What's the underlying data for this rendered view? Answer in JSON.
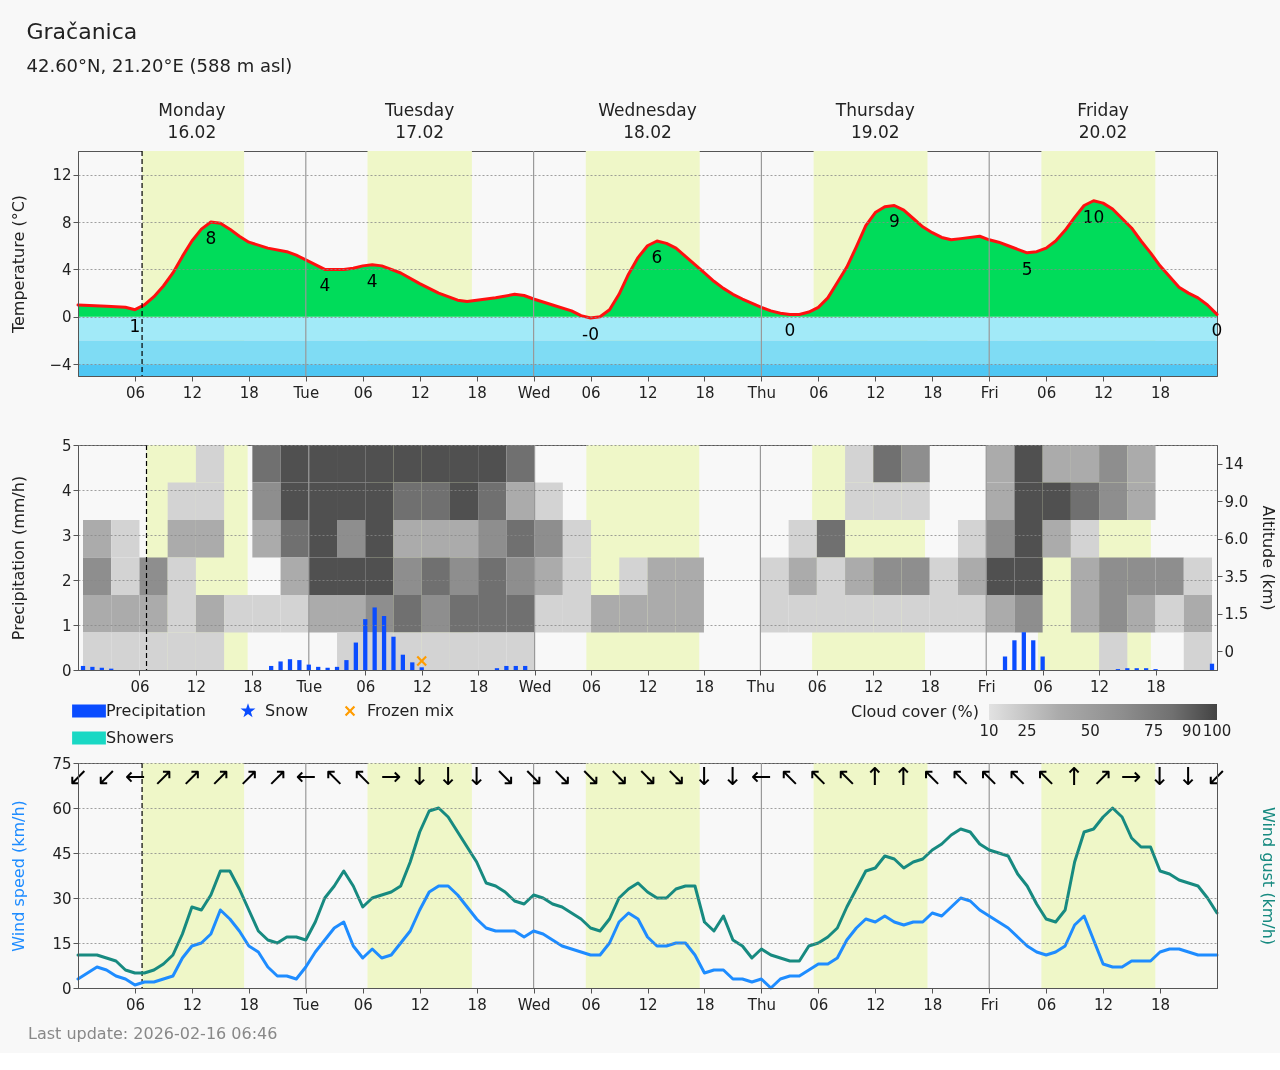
{
  "chart_data": [
    {
      "type": "area",
      "title": "Gračanica",
      "subtitle": "42.60°N, 21.20°E (588 m asl)",
      "ylabel": "Temperature (°C)",
      "x": [
        "2026-02-16T00:00",
        "2026-02-16T03:00",
        "2026-02-16T05:00",
        "2026-02-16T06:00",
        "2026-02-16T07:00",
        "2026-02-16T08:00",
        "2026-02-16T09:00",
        "2026-02-16T10:00",
        "2026-02-16T11:00",
        "2026-02-16T12:00",
        "2026-02-16T13:00",
        "2026-02-16T14:00",
        "2026-02-16T15:00",
        "2026-02-16T16:00",
        "2026-02-16T17:00",
        "2026-02-16T18:00",
        "2026-02-16T20:00",
        "2026-02-16T22:00",
        "2026-02-16T23:00",
        "2026-02-17T00:00",
        "2026-02-17T02:00",
        "2026-02-17T04:00",
        "2026-02-17T05:00",
        "2026-02-17T06:00",
        "2026-02-17T07:00",
        "2026-02-17T08:00",
        "2026-02-17T09:00",
        "2026-02-17T10:00",
        "2026-02-17T12:00",
        "2026-02-17T14:00",
        "2026-02-17T16:00",
        "2026-02-17T17:00",
        "2026-02-17T18:00",
        "2026-02-17T20:00",
        "2026-02-17T22:00",
        "2026-02-17T23:00",
        "2026-02-18T00:00",
        "2026-02-18T02:00",
        "2026-02-18T04:00",
        "2026-02-18T05:00",
        "2026-02-18T06:00",
        "2026-02-18T07:00",
        "2026-02-18T08:00",
        "2026-02-18T09:00",
        "2026-02-18T10:00",
        "2026-02-18T11:00",
        "2026-02-18T12:00",
        "2026-02-18T13:00",
        "2026-02-18T14:00",
        "2026-02-18T15:00",
        "2026-02-18T16:00",
        "2026-02-18T17:00",
        "2026-02-18T18:00",
        "2026-02-18T19:00",
        "2026-02-18T20:00",
        "2026-02-18T21:00",
        "2026-02-18T22:00",
        "2026-02-19T00:00",
        "2026-02-19T01:00",
        "2026-02-19T02:00",
        "2026-02-19T03:00",
        "2026-02-19T04:00",
        "2026-02-19T05:00",
        "2026-02-19T06:00",
        "2026-02-19T07:00",
        "2026-02-19T08:00",
        "2026-02-19T09:00",
        "2026-02-19T10:00",
        "2026-02-19T11:00",
        "2026-02-19T12:00",
        "2026-02-19T13:00",
        "2026-02-19T14:00",
        "2026-02-19T15:00",
        "2026-02-19T16:00",
        "2026-02-19T17:00",
        "2026-02-19T18:00",
        "2026-02-19T19:00",
        "2026-02-19T20:00",
        "2026-02-19T21:00",
        "2026-02-19T23:00",
        "2026-02-20T00:00",
        "2026-02-20T01:00",
        "2026-02-20T02:00",
        "2026-02-20T03:00",
        "2026-02-20T04:00",
        "2026-02-20T05:00",
        "2026-02-20T06:00",
        "2026-02-20T07:00",
        "2026-02-20T08:00",
        "2026-02-20T09:00",
        "2026-02-20T10:00",
        "2026-02-20T11:00",
        "2026-02-20T12:00",
        "2026-02-20T13:00",
        "2026-02-20T14:00",
        "2026-02-20T15:00",
        "2026-02-20T16:00",
        "2026-02-20T17:00",
        "2026-02-20T18:00",
        "2026-02-20T19:00",
        "2026-02-20T20:00",
        "2026-02-20T21:00",
        "2026-02-20T22:00",
        "2026-02-20T23:00",
        "2026-02-21T00:00"
      ],
      "series": [
        {
          "type": "area",
          "color": "#00dc5a",
          "line_style": "solid",
          "values": [
            1.0,
            0.9,
            0.8,
            0.6,
            1.0,
            1.7,
            2.6,
            3.7,
            5.1,
            6.4,
            7.4,
            8.0,
            7.9,
            7.4,
            6.8,
            6.3,
            5.8,
            5.5,
            5.2,
            4.8,
            4.0,
            4.0,
            4.1,
            4.3,
            4.4,
            4.3,
            4.0,
            3.7,
            2.8,
            2.0,
            1.4,
            1.3,
            1.4,
            1.6,
            1.9,
            1.8,
            1.5,
            1.0,
            0.5,
            0.1,
            -0.1,
            0.0,
            0.6,
            1.9,
            3.6,
            5.0,
            6.0,
            6.4,
            6.2,
            5.8,
            5.1,
            4.4,
            3.7,
            3.0,
            2.4,
            1.9,
            1.5,
            0.8,
            0.5,
            0.3,
            0.2,
            0.2,
            0.4,
            0.8,
            1.6,
            2.9,
            4.2,
            5.9,
            7.7,
            8.8,
            9.3,
            9.4,
            9.0,
            8.3,
            7.6,
            7.1,
            6.7,
            6.5,
            6.6,
            6.8,
            6.5,
            6.3,
            6.0,
            5.7,
            5.4,
            5.5,
            5.8,
            6.4,
            7.3,
            8.4,
            9.4,
            9.8,
            9.6,
            9.1,
            8.3,
            7.5,
            6.4,
            5.4,
            4.3,
            3.4,
            2.5,
            2.0,
            1.6,
            1.0,
            0.2
          ]
        }
      ],
      "xlim": [
        "2026-02-16T00:00",
        "2026-02-21T00:00"
      ],
      "xticks": [
        {
          "value": "2026-02-16T06:00",
          "label": "06"
        },
        {
          "value": "2026-02-16T12:00",
          "label": "12"
        },
        {
          "value": "2026-02-16T18:00",
          "label": "18"
        },
        {
          "value": "2026-02-17T00:00",
          "label": "Tue"
        },
        {
          "value": "2026-02-17T06:00",
          "label": "06"
        },
        {
          "value": "2026-02-17T12:00",
          "label": "12"
        },
        {
          "value": "2026-02-17T18:00",
          "label": "18"
        },
        {
          "value": "2026-02-18T00:00",
          "label": "Wed"
        },
        {
          "value": "2026-02-18T06:00",
          "label": "06"
        },
        {
          "value": "2026-02-18T12:00",
          "label": "12"
        },
        {
          "value": "2026-02-18T18:00",
          "label": "18"
        },
        {
          "value": "2026-02-19T00:00",
          "label": "Thu"
        },
        {
          "value": "2026-02-19T06:00",
          "label": "06"
        },
        {
          "value": "2026-02-19T12:00",
          "label": "12"
        },
        {
          "value": "2026-02-19T18:00",
          "label": "18"
        },
        {
          "value": "2026-02-20T00:00",
          "label": "Fri"
        },
        {
          "value": "2026-02-20T06:00",
          "label": "06"
        },
        {
          "value": "2026-02-20T12:00",
          "label": "12"
        },
        {
          "value": "2026-02-20T18:00",
          "label": "18"
        }
      ],
      "x2lim": [
        "2026-02-16T00:00",
        "2026-02-21T00:00"
      ],
      "x2ticks": [
        {
          "value": "2026-02-16T12:00",
          "label": "Monday\n16.02"
        },
        {
          "value": "2026-02-17T12:00",
          "label": "Tuesday\n17.02"
        },
        {
          "value": "2026-02-18T12:00",
          "label": "Wednesday\n18.02"
        },
        {
          "value": "2026-02-19T12:00",
          "label": "Thursday\n19.02"
        },
        {
          "value": "2026-02-20T12:00",
          "label": "Friday\n20.02"
        }
      ],
      "ylim": [
        -5,
        14
      ],
      "yticks": [
        {
          "value": -4,
          "label": "−4"
        },
        0,
        4,
        8,
        12
      ],
      "grid": "y",
      "bands": [
        {
          "axis": "x",
          "from": "2026-02-16T06:45",
          "to": "2026-02-16T17:30",
          "color": "#eff7c8"
        },
        {
          "axis": "x",
          "from": "2026-02-17T06:30",
          "to": "2026-02-17T17:30",
          "color": "#eff7c8"
        },
        {
          "axis": "x",
          "from": "2026-02-18T05:30",
          "to": "2026-02-18T17:30",
          "color": "#eff7c8"
        },
        {
          "axis": "x",
          "from": "2026-02-19T05:30",
          "to": "2026-02-19T17:30",
          "color": "#eff7c8"
        },
        {
          "axis": "x",
          "from": "2026-02-20T05:30",
          "to": "2026-02-20T17:30",
          "color": "#eff7c8"
        },
        {
          "axis": "y",
          "from": 0,
          "to": -2,
          "color": "#a2eaf8"
        },
        {
          "axis": "y",
          "from": -2,
          "to": -4,
          "color": "#7fdcf4"
        },
        {
          "axis": "y",
          "from": -4,
          "to": -5,
          "color": "#4fc7f4"
        }
      ],
      "ref_lines": [
        {
          "axis": "x",
          "value": "2026-02-17T00:00",
          "color": "#999999"
        },
        {
          "axis": "x",
          "value": "2026-02-18T00:00",
          "color": "#999999"
        },
        {
          "axis": "x",
          "value": "2026-02-19T00:00",
          "color": "#999999"
        },
        {
          "axis": "x",
          "value": "2026-02-20T00:00",
          "color": "#999999"
        },
        {
          "axis": "x",
          "value": "2026-02-16T06:45",
          "color": "#000000",
          "line_style": "dashed"
        }
      ],
      "annotations": [
        {
          "text": "1",
          "x": "2026-02-16T06:00",
          "y": 0.6
        },
        {
          "text": "8",
          "x": "2026-02-16T14:00",
          "y": 8.0
        },
        {
          "text": "4",
          "x": "2026-02-17T02:00",
          "y": 4.0
        },
        {
          "text": "4",
          "x": "2026-02-17T07:00",
          "y": 4.4
        },
        {
          "text": "-0",
          "x": "2026-02-18T06:00",
          "y": -0.1
        },
        {
          "text": "6",
          "x": "2026-02-18T13:00",
          "y": 6.4
        },
        {
          "text": "0",
          "x": "2026-02-19T03:00",
          "y": 0.2
        },
        {
          "text": "9",
          "x": "2026-02-19T14:00",
          "y": 9.4
        },
        {
          "text": "5",
          "x": "2026-02-20T04:00",
          "y": 5.4
        },
        {
          "text": "10",
          "x": "2026-02-20T11:00",
          "y": 9.8
        },
        {
          "text": "0",
          "x": "2026-02-21T00:00",
          "y": 0.2
        }
      ]
    },
    {
      "type": "bar",
      "ylabel": "Precipitation (mm/h)",
      "x": [
        "2026-02-16T00:00",
        "2026-02-16T01:00",
        "2026-02-16T02:00",
        "2026-02-16T03:00",
        "2026-02-16T20:00",
        "2026-02-16T21:00",
        "2026-02-16T22:00",
        "2026-02-16T23:00",
        "2026-02-17T00:00",
        "2026-02-17T01:00",
        "2026-02-17T02:00",
        "2026-02-17T03:00",
        "2026-02-17T04:00",
        "2026-02-17T05:00",
        "2026-02-17T06:00",
        "2026-02-17T07:00",
        "2026-02-17T08:00",
        "2026-02-17T09:00",
        "2026-02-17T10:00",
        "2026-02-17T11:00",
        "2026-02-17T12:00",
        "2026-02-17T20:00",
        "2026-02-17T21:00",
        "2026-02-17T22:00",
        "2026-02-17T23:00",
        "2026-02-20T02:00",
        "2026-02-20T03:00",
        "2026-02-20T04:00",
        "2026-02-20T05:00",
        "2026-02-20T06:00",
        "2026-02-20T14:00",
        "2026-02-20T15:00",
        "2026-02-20T16:00",
        "2026-02-20T17:00",
        "2026-02-20T18:00",
        "2026-02-21T00:00"
      ],
      "series": [
        {
          "name": "Precipitation",
          "type": "bar",
          "color": "#0a4cff",
          "values": [
            0.09,
            0.07,
            0.05,
            0.03,
            0.09,
            0.19,
            0.24,
            0.22,
            0.12,
            0.07,
            0.05,
            0.07,
            0.22,
            0.61,
            1.13,
            1.39,
            1.2,
            0.74,
            0.34,
            0.17,
            0.06,
            0.04,
            0.09,
            0.09,
            0.09,
            0.3,
            0.66,
            0.84,
            0.66,
            0.3,
            0.02,
            0.04,
            0.04,
            0.04,
            0.02,
            0.14
          ]
        },
        {
          "name": "Snow",
          "type": "scatter",
          "marker": "star",
          "color": "#0a4cff",
          "values": [
            null,
            null,
            null,
            null,
            null,
            null,
            null,
            null,
            null,
            null,
            null,
            null,
            null,
            null,
            null,
            null,
            null,
            null,
            null,
            null,
            null,
            null,
            null,
            null,
            null,
            null,
            null,
            null,
            null,
            null,
            null,
            null,
            null,
            null,
            null,
            null
          ]
        },
        {
          "name": "Frozen mix",
          "type": "scatter",
          "marker": "cross",
          "color": "#ff9c00",
          "x": [
            "2026-02-17T12:00"
          ],
          "values": [
            0.2
          ]
        },
        {
          "name": "Showers",
          "type": "bar",
          "color": "#19d8c4",
          "values": [
            null,
            null,
            null,
            null,
            null,
            null,
            null,
            null,
            null,
            null,
            null,
            null,
            null,
            null,
            null,
            null,
            null,
            null,
            null,
            null,
            null,
            null,
            null,
            null,
            null,
            null,
            null,
            null,
            null,
            null,
            null,
            null,
            null,
            null,
            null,
            null
          ]
        }
      ],
      "xlim": [
        "2026-02-16T00:00",
        "2026-02-21T00:00"
      ],
      "xticks": [
        {
          "value": "2026-02-16T06:00",
          "label": "06"
        },
        {
          "value": "2026-02-16T12:00",
          "label": "12"
        },
        {
          "value": "2026-02-16T18:00",
          "label": "18"
        },
        {
          "value": "2026-02-17T00:00",
          "label": "Tue"
        },
        {
          "value": "2026-02-17T06:00",
          "label": "06"
        },
        {
          "value": "2026-02-17T12:00",
          "label": "12"
        },
        {
          "value": "2026-02-17T18:00",
          "label": "18"
        },
        {
          "value": "2026-02-18T00:00",
          "label": "Wed"
        },
        {
          "value": "2026-02-18T06:00",
          "label": "06"
        },
        {
          "value": "2026-02-18T12:00",
          "label": "12"
        },
        {
          "value": "2026-02-18T18:00",
          "label": "18"
        },
        {
          "value": "2026-02-19T00:00",
          "label": "Thu"
        },
        {
          "value": "2026-02-19T06:00",
          "label": "06"
        },
        {
          "value": "2026-02-19T12:00",
          "label": "12"
        },
        {
          "value": "2026-02-19T18:00",
          "label": "18"
        },
        {
          "value": "2026-02-20T00:00",
          "label": "Fri"
        },
        {
          "value": "2026-02-20T06:00",
          "label": "06"
        },
        {
          "value": "2026-02-20T12:00",
          "label": "12"
        },
        {
          "value": "2026-02-20T18:00",
          "label": "18"
        }
      ],
      "ylim": [
        0,
        5
      ],
      "yticks": [
        0,
        1,
        2,
        3,
        4,
        5
      ],
      "grid": "y",
      "legend": "bottom left",
      "bands": [
        {
          "axis": "x",
          "from": "2026-02-16T06:45",
          "to": "2026-02-16T17:30",
          "color": "#eff7c8"
        },
        {
          "axis": "x",
          "from": "2026-02-17T06:30",
          "to": "2026-02-17T17:30",
          "color": "#eff7c8"
        },
        {
          "axis": "x",
          "from": "2026-02-18T05:30",
          "to": "2026-02-18T17:30",
          "color": "#eff7c8"
        },
        {
          "axis": "x",
          "from": "2026-02-19T05:30",
          "to": "2026-02-19T17:30",
          "color": "#eff7c8"
        },
        {
          "axis": "x",
          "from": "2026-02-20T05:30",
          "to": "2026-02-20T17:30",
          "color": "#eff7c8"
        }
      ],
      "ref_lines": [
        {
          "axis": "x",
          "value": "2026-02-17T00:00",
          "color": "#999999"
        },
        {
          "axis": "x",
          "value": "2026-02-18T00:00",
          "color": "#999999"
        },
        {
          "axis": "x",
          "value": "2026-02-19T00:00",
          "color": "#999999"
        },
        {
          "axis": "x",
          "value": "2026-02-20T00:00",
          "color": "#999999"
        },
        {
          "axis": "x",
          "value": "2026-02-16T06:45",
          "color": "#000000",
          "line_style": "dashed"
        }
      ]
    },
    {
      "type": "heatmap",
      "clabel": "Cloud cover (%)",
      "clim": [
        10,
        100
      ],
      "cticks": [
        10,
        25,
        50,
        75,
        90,
        100
      ],
      "colors": [
        "#d3d3d3",
        "#ababab",
        "#8e8e8e",
        "#707070",
        "#505050"
      ],
      "y2label": "Altitude (km)",
      "xlim": [
        "2026-02-16T00:00",
        "2026-02-21T00:00"
      ],
      "x": [
        "2026-02-16T01:30",
        "2026-02-16T04:30",
        "2026-02-16T07:30",
        "2026-02-16T10:30",
        "2026-02-16T13:30",
        "2026-02-16T16:30",
        "2026-02-16T19:30",
        "2026-02-16T22:30",
        "2026-02-17T01:30",
        "2026-02-17T04:30",
        "2026-02-17T07:30",
        "2026-02-17T10:30",
        "2026-02-17T13:30",
        "2026-02-17T16:30",
        "2026-02-17T19:30",
        "2026-02-17T22:30",
        "2026-02-18T01:30",
        "2026-02-18T04:30",
        "2026-02-18T07:30",
        "2026-02-18T10:30",
        "2026-02-18T13:30",
        "2026-02-18T16:30",
        "2026-02-18T19:30",
        "2026-02-18T22:30",
        "2026-02-19T01:30",
        "2026-02-19T04:30",
        "2026-02-19T07:30",
        "2026-02-19T10:30",
        "2026-02-19T13:30",
        "2026-02-19T16:30",
        "2026-02-19T19:30",
        "2026-02-19T22:30",
        "2026-02-20T01:30",
        "2026-02-20T04:30",
        "2026-02-20T07:30",
        "2026-02-20T10:30",
        "2026-02-20T13:30",
        "2026-02-20T16:30",
        "2026-02-20T19:30",
        "2026-02-20T22:30"
      ],
      "y_categories": [
        null,
        null,
        null,
        null,
        null,
        null
      ],
      "y2_categories": [
        "14",
        "9.0",
        "6.0",
        "3.5",
        "1.5",
        "0"
      ],
      "cells": [
        [
          null,
          null,
          null,
          null,
          17.5,
          null,
          82.5,
          95,
          95,
          95,
          95,
          95,
          95,
          95,
          95,
          82.5,
          null,
          null,
          null,
          null,
          null,
          null,
          null,
          null,
          null,
          null,
          null,
          17.5,
          82.5,
          62.5,
          null,
          null,
          37.5,
          95,
          37.5,
          37.5,
          62.5,
          37.5,
          null,
          null
        ],
        [
          null,
          null,
          null,
          17.5,
          17.5,
          null,
          62.5,
          95,
          95,
          95,
          95,
          82.5,
          82.5,
          95,
          82.5,
          37.5,
          17.5,
          null,
          null,
          null,
          null,
          null,
          null,
          null,
          null,
          null,
          null,
          17.5,
          17.5,
          17.5,
          null,
          null,
          37.5,
          95,
          95,
          82.5,
          62.5,
          37.5,
          null,
          null
        ],
        [
          37.5,
          17.5,
          null,
          37.5,
          37.5,
          null,
          37.5,
          82.5,
          95,
          62.5,
          95,
          37.5,
          37.5,
          37.5,
          62.5,
          82.5,
          62.5,
          17.5,
          null,
          null,
          null,
          null,
          null,
          null,
          null,
          17.5,
          82.5,
          null,
          null,
          null,
          null,
          17.5,
          62.5,
          95,
          37.5,
          17.5,
          null,
          null,
          null,
          null
        ],
        [
          62.5,
          17.5,
          62.5,
          17.5,
          null,
          null,
          null,
          37.5,
          95,
          95,
          95,
          62.5,
          82.5,
          62.5,
          82.5,
          62.5,
          37.5,
          17.5,
          null,
          17.5,
          37.5,
          37.5,
          null,
          null,
          17.5,
          37.5,
          17.5,
          37.5,
          62.5,
          62.5,
          17.5,
          37.5,
          95,
          95,
          null,
          37.5,
          62.5,
          62.5,
          62.5,
          17.5
        ],
        [
          37.5,
          37.5,
          37.5,
          17.5,
          37.5,
          17.5,
          17.5,
          17.5,
          37.5,
          37.5,
          62.5,
          82.5,
          62.5,
          82.5,
          82.5,
          82.5,
          17.5,
          17.5,
          37.5,
          37.5,
          37.5,
          37.5,
          null,
          null,
          17.5,
          17.5,
          17.5,
          17.5,
          17.5,
          17.5,
          17.5,
          17.5,
          37.5,
          62.5,
          null,
          37.5,
          62.5,
          37.5,
          17.5,
          37.5
        ],
        [
          17.5,
          17.5,
          17.5,
          17.5,
          17.5,
          null,
          null,
          null,
          null,
          17.5,
          17.5,
          17.5,
          17.5,
          17.5,
          17.5,
          17.5,
          null,
          null,
          null,
          null,
          null,
          null,
          null,
          null,
          null,
          null,
          null,
          null,
          null,
          null,
          null,
          null,
          null,
          null,
          null,
          null,
          17.5,
          null,
          null,
          17.5
        ]
      ]
    },
    {
      "type": "line",
      "ylabel": "Wind speed (km/h)",
      "y2label": "Wind gust (km/h)",
      "x": [
        "2026-02-16T00:00",
        "2026-02-16T01:00",
        "2026-02-16T02:00",
        "2026-02-16T03:00",
        "2026-02-16T04:00",
        "2026-02-16T05:00",
        "2026-02-16T06:00",
        "2026-02-16T07:00",
        "2026-02-16T08:00",
        "2026-02-16T09:00",
        "2026-02-16T10:00",
        "2026-02-16T11:00",
        "2026-02-16T12:00",
        "2026-02-16T13:00",
        "2026-02-16T14:00",
        "2026-02-16T15:00",
        "2026-02-16T16:00",
        "2026-02-16T17:00",
        "2026-02-16T18:00",
        "2026-02-16T19:00",
        "2026-02-16T20:00",
        "2026-02-16T21:00",
        "2026-02-16T22:00",
        "2026-02-16T23:00",
        "2026-02-17T00:00",
        "2026-02-17T01:00",
        "2026-02-17T02:00",
        "2026-02-17T03:00",
        "2026-02-17T04:00",
        "2026-02-17T05:00",
        "2026-02-17T06:00",
        "2026-02-17T07:00",
        "2026-02-17T08:00",
        "2026-02-17T09:00",
        "2026-02-17T10:00",
        "2026-02-17T11:00",
        "2026-02-17T12:00",
        "2026-02-17T13:00",
        "2026-02-17T14:00",
        "2026-02-17T15:00",
        "2026-02-17T16:00",
        "2026-02-17T17:00",
        "2026-02-17T18:00",
        "2026-02-17T19:00",
        "2026-02-17T20:00",
        "2026-02-17T21:00",
        "2026-02-17T22:00",
        "2026-02-17T23:00",
        "2026-02-18T00:00",
        "2026-02-18T01:00",
        "2026-02-18T02:00",
        "2026-02-18T03:00",
        "2026-02-18T04:00",
        "2026-02-18T05:00",
        "2026-02-18T06:00",
        "2026-02-18T07:00",
        "2026-02-18T08:00",
        "2026-02-18T09:00",
        "2026-02-18T10:00",
        "2026-02-18T11:00",
        "2026-02-18T12:00",
        "2026-02-18T13:00",
        "2026-02-18T14:00",
        "2026-02-18T15:00",
        "2026-02-18T16:00",
        "2026-02-18T17:00",
        "2026-02-18T18:00",
        "2026-02-18T19:00",
        "2026-02-18T20:00",
        "2026-02-18T21:00",
        "2026-02-18T22:00",
        "2026-02-18T23:00",
        "2026-02-19T00:00",
        "2026-02-19T01:00",
        "2026-02-19T02:00",
        "2026-02-19T03:00",
        "2026-02-19T04:00",
        "2026-02-19T05:00",
        "2026-02-19T06:00",
        "2026-02-19T07:00",
        "2026-02-19T08:00",
        "2026-02-19T09:00",
        "2026-02-19T10:00",
        "2026-02-19T11:00",
        "2026-02-19T12:00",
        "2026-02-19T13:00",
        "2026-02-19T14:00",
        "2026-02-19T15:00",
        "2026-02-19T16:00",
        "2026-02-19T17:00",
        "2026-02-19T18:00",
        "2026-02-19T19:00",
        "2026-02-19T20:00",
        "2026-02-19T21:00",
        "2026-02-19T22:00",
        "2026-02-19T23:00",
        "2026-02-20T00:00",
        "2026-02-20T01:00",
        "2026-02-20T02:00",
        "2026-02-20T03:00",
        "2026-02-20T04:00",
        "2026-02-20T05:00",
        "2026-02-20T06:00",
        "2026-02-20T07:00",
        "2026-02-20T08:00",
        "2026-02-20T09:00",
        "2026-02-20T10:00",
        "2026-02-20T11:00",
        "2026-02-20T12:00",
        "2026-02-20T13:00",
        "2026-02-20T14:00",
        "2026-02-20T15:00",
        "2026-02-20T16:00",
        "2026-02-20T17:00",
        "2026-02-20T18:00",
        "2026-02-20T19:00",
        "2026-02-20T20:00",
        "2026-02-20T21:00",
        "2026-02-20T22:00",
        "2026-02-20T23:00",
        "2026-02-21T00:00"
      ],
      "series": [
        {
          "color": "#1e8cff",
          "values": [
            3,
            5,
            7,
            6,
            4,
            3,
            1,
            2,
            2,
            3,
            4,
            10,
            14,
            15,
            18,
            26,
            23,
            19,
            14,
            12,
            7,
            4,
            4,
            3,
            7,
            12,
            16,
            20,
            22,
            14,
            10,
            13,
            10,
            11,
            15,
            19,
            26,
            32,
            34,
            34,
            31,
            27,
            23,
            20,
            19,
            19,
            19,
            17,
            19,
            18,
            16,
            14,
            13,
            12,
            11,
            11,
            15,
            22,
            25,
            23,
            17,
            14,
            14,
            15,
            15,
            11,
            5,
            6,
            6,
            3,
            3,
            2,
            3,
            0,
            3,
            4,
            4,
            6,
            8,
            8,
            10,
            16,
            20,
            23,
            22,
            24,
            22,
            21,
            22,
            22,
            25,
            24,
            27,
            30,
            29,
            26,
            24,
            22,
            20,
            17,
            14,
            12,
            11,
            12,
            14,
            21,
            24,
            16,
            8,
            7,
            7,
            9,
            9,
            9,
            12,
            13,
            13,
            12,
            11,
            11,
            11
          ]
        },
        {
          "color": "#178a80",
          "values": [
            11,
            11,
            11,
            10,
            9,
            6,
            5,
            5,
            6,
            8,
            11,
            18,
            27,
            26,
            31,
            39,
            39,
            33,
            26,
            19,
            16,
            15,
            17,
            17,
            16,
            22,
            30,
            34,
            39,
            34,
            27,
            30,
            31,
            32,
            34,
            42,
            52,
            59,
            60,
            57,
            52,
            47,
            42,
            35,
            34,
            32,
            29,
            28,
            31,
            30,
            28,
            27,
            25,
            23,
            20,
            19,
            23,
            30,
            33,
            35,
            32,
            30,
            30,
            33,
            34,
            34,
            22,
            19,
            24,
            16,
            14,
            10,
            13,
            11,
            10,
            9,
            9,
            14,
            15,
            17,
            20,
            27,
            33,
            39,
            40,
            44,
            43,
            40,
            42,
            43,
            46,
            48,
            51,
            53,
            52,
            48,
            46,
            45,
            44,
            38,
            34,
            28,
            23,
            22,
            26,
            42,
            52,
            53,
            57,
            60,
            57,
            50,
            47,
            47,
            39,
            38,
            36,
            35,
            34,
            30,
            25
          ]
        }
      ],
      "xlim": [
        "2026-02-16T00:00",
        "2026-02-21T00:00"
      ],
      "xticks": [
        {
          "value": "2026-02-16T06:00",
          "label": "06"
        },
        {
          "value": "2026-02-16T12:00",
          "label": "12"
        },
        {
          "value": "2026-02-16T18:00",
          "label": "18"
        },
        {
          "value": "2026-02-17T00:00",
          "label": "Tue"
        },
        {
          "value": "2026-02-17T06:00",
          "label": "06"
        },
        {
          "value": "2026-02-17T12:00",
          "label": "12"
        },
        {
          "value": "2026-02-17T18:00",
          "label": "18"
        },
        {
          "value": "2026-02-18T00:00",
          "label": "Wed"
        },
        {
          "value": "2026-02-18T06:00",
          "label": "06"
        },
        {
          "value": "2026-02-18T12:00",
          "label": "12"
        },
        {
          "value": "2026-02-18T18:00",
          "label": "18"
        },
        {
          "value": "2026-02-19T00:00",
          "label": "Thu"
        },
        {
          "value": "2026-02-19T06:00",
          "label": "06"
        },
        {
          "value": "2026-02-19T12:00",
          "label": "12"
        },
        {
          "value": "2026-02-19T18:00",
          "label": "18"
        },
        {
          "value": "2026-02-20T00:00",
          "label": "Fri"
        },
        {
          "value": "2026-02-20T06:00",
          "label": "06"
        },
        {
          "value": "2026-02-20T12:00",
          "label": "12"
        },
        {
          "value": "2026-02-20T18:00",
          "label": "18"
        }
      ],
      "ylim": [
        0,
        75
      ],
      "yticks": [
        0,
        15,
        30,
        45,
        60,
        75
      ],
      "grid": "y",
      "bands": [
        {
          "axis": "x",
          "from": "2026-02-16T06:45",
          "to": "2026-02-16T17:30",
          "color": "#eff7c8"
        },
        {
          "axis": "x",
          "from": "2026-02-17T06:30",
          "to": "2026-02-17T17:30",
          "color": "#eff7c8"
        },
        {
          "axis": "x",
          "from": "2026-02-18T05:30",
          "to": "2026-02-18T17:30",
          "color": "#eff7c8"
        },
        {
          "axis": "x",
          "from": "2026-02-19T05:30",
          "to": "2026-02-19T17:30",
          "color": "#eff7c8"
        },
        {
          "axis": "x",
          "from": "2026-02-20T05:30",
          "to": "2026-02-20T17:30",
          "color": "#eff7c8"
        }
      ],
      "ref_lines": [
        {
          "axis": "x",
          "value": "2026-02-17T00:00",
          "color": "#999999"
        },
        {
          "axis": "x",
          "value": "2026-02-18T00:00",
          "color": "#999999"
        },
        {
          "axis": "x",
          "value": "2026-02-19T00:00",
          "color": "#999999"
        },
        {
          "axis": "x",
          "value": "2026-02-20T00:00",
          "color": "#999999"
        },
        {
          "axis": "x",
          "value": "2026-02-16T06:45",
          "color": "#000000",
          "line_style": "dashed"
        }
      ],
      "annotations": [
        "↙ ↙ ← ↗ ↗ ↗ ↗ ↗ ← ↖ ↖ → ↓ ↓ ↓ ↘ ↘ ↘ ↘ ↘ ↘ ↘ ↓ ↓ ← ↖ ↖ ↖ ↑ ↑ ↖ ↖ ↖ ↖ ↖ ↑ ↗ → ↓ ↓ ↙",
        "Last update: 2026-02-16 06:46"
      ]
    }
  ]
}
